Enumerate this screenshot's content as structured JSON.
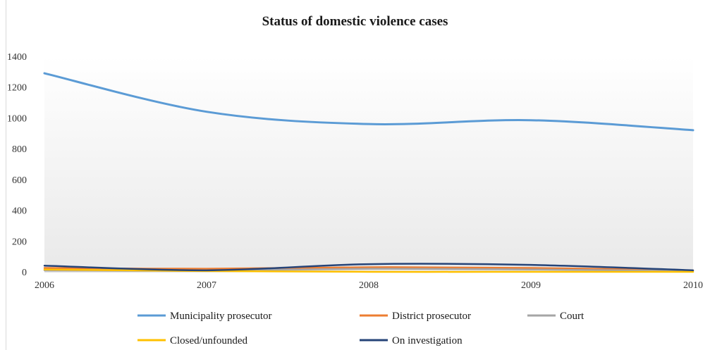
{
  "chart_data": {
    "type": "line",
    "title": "Status of domestic violence cases",
    "xlabel": "",
    "ylabel": "",
    "categories": [
      "2006",
      "2007",
      "2008",
      "2009",
      "2010"
    ],
    "ylim": [
      0,
      1400
    ],
    "yticks": [
      "0",
      "200",
      "400",
      "600",
      "800",
      "1000",
      "1200",
      "1400"
    ],
    "grid": false,
    "legend_position": "bottom",
    "series": [
      {
        "name": "Municipality prosecutor",
        "color": "#5b9bd5",
        "values": [
          1290,
          1040,
          960,
          985,
          920
        ]
      },
      {
        "name": "District prosecutor",
        "color": "#ed7d31",
        "values": [
          25,
          20,
          30,
          25,
          10
        ]
      },
      {
        "name": "Court",
        "color": "#a5a5a5",
        "values": [
          10,
          8,
          20,
          15,
          5
        ]
      },
      {
        "name": "Closed/unfounded",
        "color": "#ffc000",
        "values": [
          15,
          5,
          0,
          0,
          0
        ]
      },
      {
        "name": "On investigation",
        "color": "#264478",
        "values": [
          40,
          10,
          50,
          45,
          10
        ]
      }
    ]
  }
}
